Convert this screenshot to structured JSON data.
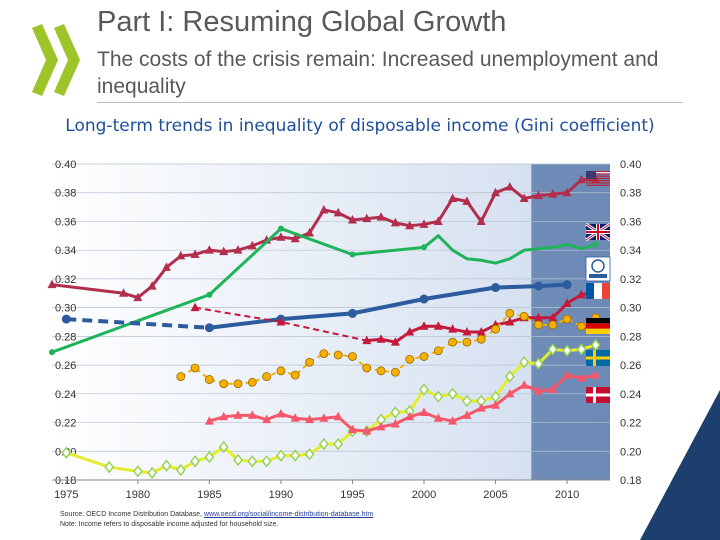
{
  "header": {
    "title": "Part I: Resuming Global Growth",
    "subtitle": "The costs of the crisis remain: Increased unemployment and inequality"
  },
  "chart_title": "Long-term trends in inequality of disposable income (Gini coefficient)",
  "footer": {
    "source_prefix": "Source: OECD Income Distribution Database, ",
    "source_link": "www.oecd.org/social/income-distribution-database.htm",
    "note": "Note: Income refers to disposable income adjusted for household size."
  },
  "chart_data": {
    "type": "line",
    "title": "Long-term trends in inequality of disposable income (Gini coefficient)",
    "xlabel": "",
    "ylabel": "",
    "xlim": [
      1974,
      2013
    ],
    "ylim": [
      0.18,
      0.4
    ],
    "x_ticks": [
      "1975",
      "1980",
      "1985",
      "1990",
      "1995",
      "2000",
      "2005",
      "2010"
    ],
    "y_ticks": [
      "0.18",
      "0.20",
      "0.22",
      "0.24",
      "0.26",
      "0.28",
      "0.30",
      "0.32",
      "0.34",
      "0.36",
      "0.38",
      "0.40"
    ],
    "grid": true,
    "shaded_region": [
      2007.5,
      2013
    ],
    "shaded_color": "#2c5491",
    "background_gradient": [
      "#ffffff",
      "#cfdcee"
    ],
    "series": [
      {
        "country": "United States",
        "flag": "us",
        "color": "#b32d4c",
        "marker": "triangle",
        "points": [
          [
            1974,
            0.316
          ],
          [
            1979,
            0.31
          ],
          [
            1980,
            0.307
          ],
          [
            1981,
            0.315
          ],
          [
            1982,
            0.328
          ],
          [
            1983,
            0.336
          ],
          [
            1984,
            0.337
          ],
          [
            1985,
            0.34
          ],
          [
            1986,
            0.339
          ],
          [
            1987,
            0.34
          ],
          [
            1988,
            0.343
          ],
          [
            1989,
            0.347
          ],
          [
            1990,
            0.349
          ],
          [
            1991,
            0.348
          ],
          [
            1992,
            0.352
          ],
          [
            1993,
            0.368
          ],
          [
            1994,
            0.366
          ],
          [
            1995,
            0.361
          ],
          [
            1996,
            0.362
          ],
          [
            1997,
            0.363
          ],
          [
            1998,
            0.359
          ],
          [
            1999,
            0.357
          ],
          [
            2000,
            0.358
          ],
          [
            2001,
            0.36
          ],
          [
            2002,
            0.376
          ],
          [
            2003,
            0.374
          ],
          [
            2004,
            0.36
          ],
          [
            2005,
            0.38
          ],
          [
            2006,
            0.384
          ],
          [
            2007,
            0.376
          ],
          [
            2008,
            0.378
          ],
          [
            2009,
            0.379
          ],
          [
            2010,
            0.38
          ],
          [
            2011,
            0.389
          ],
          [
            2012,
            0.389
          ]
        ]
      },
      {
        "country": "United Kingdom",
        "flag": "uk",
        "color": "#1fb35a",
        "marker": "dot",
        "points": [
          [
            1974,
            0.269
          ],
          [
            1985,
            0.309
          ],
          [
            1990,
            0.355
          ],
          [
            1995,
            0.337
          ],
          [
            2000,
            0.342
          ],
          [
            2001,
            0.35
          ],
          [
            2002,
            0.34
          ],
          [
            2003,
            0.334
          ],
          [
            2004,
            0.333
          ],
          [
            2005,
            0.331
          ],
          [
            2006,
            0.334
          ],
          [
            2007,
            0.34
          ],
          [
            2008,
            0.341
          ],
          [
            2009,
            0.342
          ],
          [
            2010,
            0.344
          ],
          [
            2011,
            0.341
          ],
          [
            2012,
            0.344
          ]
        ]
      },
      {
        "country": "OECD",
        "flag": "oecd",
        "color": "#2c5b9e",
        "marker": "dot",
        "points": [
          [
            1975,
            0.292
          ],
          [
            1985,
            0.286
          ],
          [
            1990,
            0.292
          ],
          [
            1995,
            0.296
          ],
          [
            2000,
            0.306
          ],
          [
            2005,
            0.314
          ],
          [
            2008,
            0.315
          ],
          [
            2010,
            0.316
          ]
        ]
      },
      {
        "country": "France",
        "flag": "fr",
        "color": "#c4193b",
        "marker": "triangle",
        "points": [
          [
            1984,
            0.3
          ],
          [
            1990,
            0.29
          ],
          [
            1996,
            0.277
          ],
          [
            1997,
            0.278
          ],
          [
            1998,
            0.276
          ],
          [
            1999,
            0.283
          ],
          [
            2000,
            0.287
          ],
          [
            2001,
            0.287
          ],
          [
            2002,
            0.285
          ],
          [
            2003,
            0.283
          ],
          [
            2004,
            0.283
          ],
          [
            2005,
            0.288
          ],
          [
            2006,
            0.29
          ],
          [
            2007,
            0.293
          ],
          [
            2008,
            0.293
          ],
          [
            2009,
            0.293
          ],
          [
            2010,
            0.303
          ],
          [
            2011,
            0.309
          ],
          [
            2012,
            0.311
          ]
        ]
      },
      {
        "country": "Germany",
        "flag": "de",
        "color": "#f5b000",
        "marker": "dot",
        "points": [
          [
            1983,
            0.252
          ],
          [
            1984,
            0.258
          ],
          [
            1985,
            0.25
          ],
          [
            1986,
            0.247
          ],
          [
            1987,
            0.247
          ],
          [
            1988,
            0.248
          ],
          [
            1989,
            0.252
          ],
          [
            1990,
            0.256
          ],
          [
            1991,
            0.253
          ],
          [
            1992,
            0.262
          ],
          [
            1993,
            0.268
          ],
          [
            1994,
            0.267
          ],
          [
            1995,
            0.266
          ],
          [
            1996,
            0.258
          ],
          [
            1997,
            0.256
          ],
          [
            1998,
            0.255
          ],
          [
            1999,
            0.264
          ],
          [
            2000,
            0.266
          ],
          [
            2001,
            0.27
          ],
          [
            2002,
            0.276
          ],
          [
            2003,
            0.276
          ],
          [
            2004,
            0.278
          ],
          [
            2005,
            0.285
          ],
          [
            2006,
            0.296
          ],
          [
            2007,
            0.294
          ],
          [
            2008,
            0.288
          ],
          [
            2009,
            0.288
          ],
          [
            2010,
            0.292
          ],
          [
            2011,
            0.287
          ],
          [
            2012,
            0.293
          ]
        ]
      },
      {
        "country": "Sweden",
        "flag": "se",
        "color": "#e6ec2c",
        "marker": "diamond",
        "points": [
          [
            1975,
            0.199
          ],
          [
            1978,
            0.189
          ],
          [
            1980,
            0.186
          ],
          [
            1981,
            0.185
          ],
          [
            1982,
            0.19
          ],
          [
            1983,
            0.187
          ],
          [
            1984,
            0.193
          ],
          [
            1985,
            0.196
          ],
          [
            1986,
            0.203
          ],
          [
            1987,
            0.194
          ],
          [
            1988,
            0.193
          ],
          [
            1989,
            0.193
          ],
          [
            1990,
            0.197
          ],
          [
            1991,
            0.197
          ],
          [
            1992,
            0.198
          ],
          [
            1993,
            0.205
          ],
          [
            1994,
            0.205
          ],
          [
            1995,
            0.214
          ],
          [
            1996,
            0.214
          ],
          [
            1997,
            0.222
          ],
          [
            1998,
            0.227
          ],
          [
            1999,
            0.228
          ],
          [
            2000,
            0.243
          ],
          [
            2001,
            0.238
          ],
          [
            2002,
            0.24
          ],
          [
            2003,
            0.235
          ],
          [
            2004,
            0.235
          ],
          [
            2005,
            0.238
          ],
          [
            2006,
            0.252
          ],
          [
            2007,
            0.262
          ],
          [
            2008,
            0.261
          ],
          [
            2009,
            0.271
          ],
          [
            2010,
            0.27
          ],
          [
            2011,
            0.271
          ],
          [
            2012,
            0.274
          ]
        ]
      },
      {
        "country": "Denmark",
        "flag": "dk",
        "color": "#f5586a",
        "marker": "triangle",
        "points": [
          [
            1985,
            0.221
          ],
          [
            1986,
            0.224
          ],
          [
            1987,
            0.225
          ],
          [
            1988,
            0.225
          ],
          [
            1989,
            0.222
          ],
          [
            1990,
            0.226
          ],
          [
            1991,
            0.223
          ],
          [
            1992,
            0.222
          ],
          [
            1993,
            0.223
          ],
          [
            1994,
            0.224
          ],
          [
            1995,
            0.215
          ],
          [
            1996,
            0.214
          ],
          [
            1997,
            0.217
          ],
          [
            1998,
            0.219
          ],
          [
            1999,
            0.224
          ],
          [
            2000,
            0.227
          ],
          [
            2001,
            0.223
          ],
          [
            2002,
            0.221
          ],
          [
            2003,
            0.225
          ],
          [
            2004,
            0.23
          ],
          [
            2005,
            0.232
          ],
          [
            2006,
            0.24
          ],
          [
            2007,
            0.246
          ],
          [
            2008,
            0.242
          ],
          [
            2009,
            0.243
          ],
          [
            2010,
            0.253
          ],
          [
            2011,
            0.251
          ],
          [
            2012,
            0.253
          ]
        ]
      }
    ]
  }
}
